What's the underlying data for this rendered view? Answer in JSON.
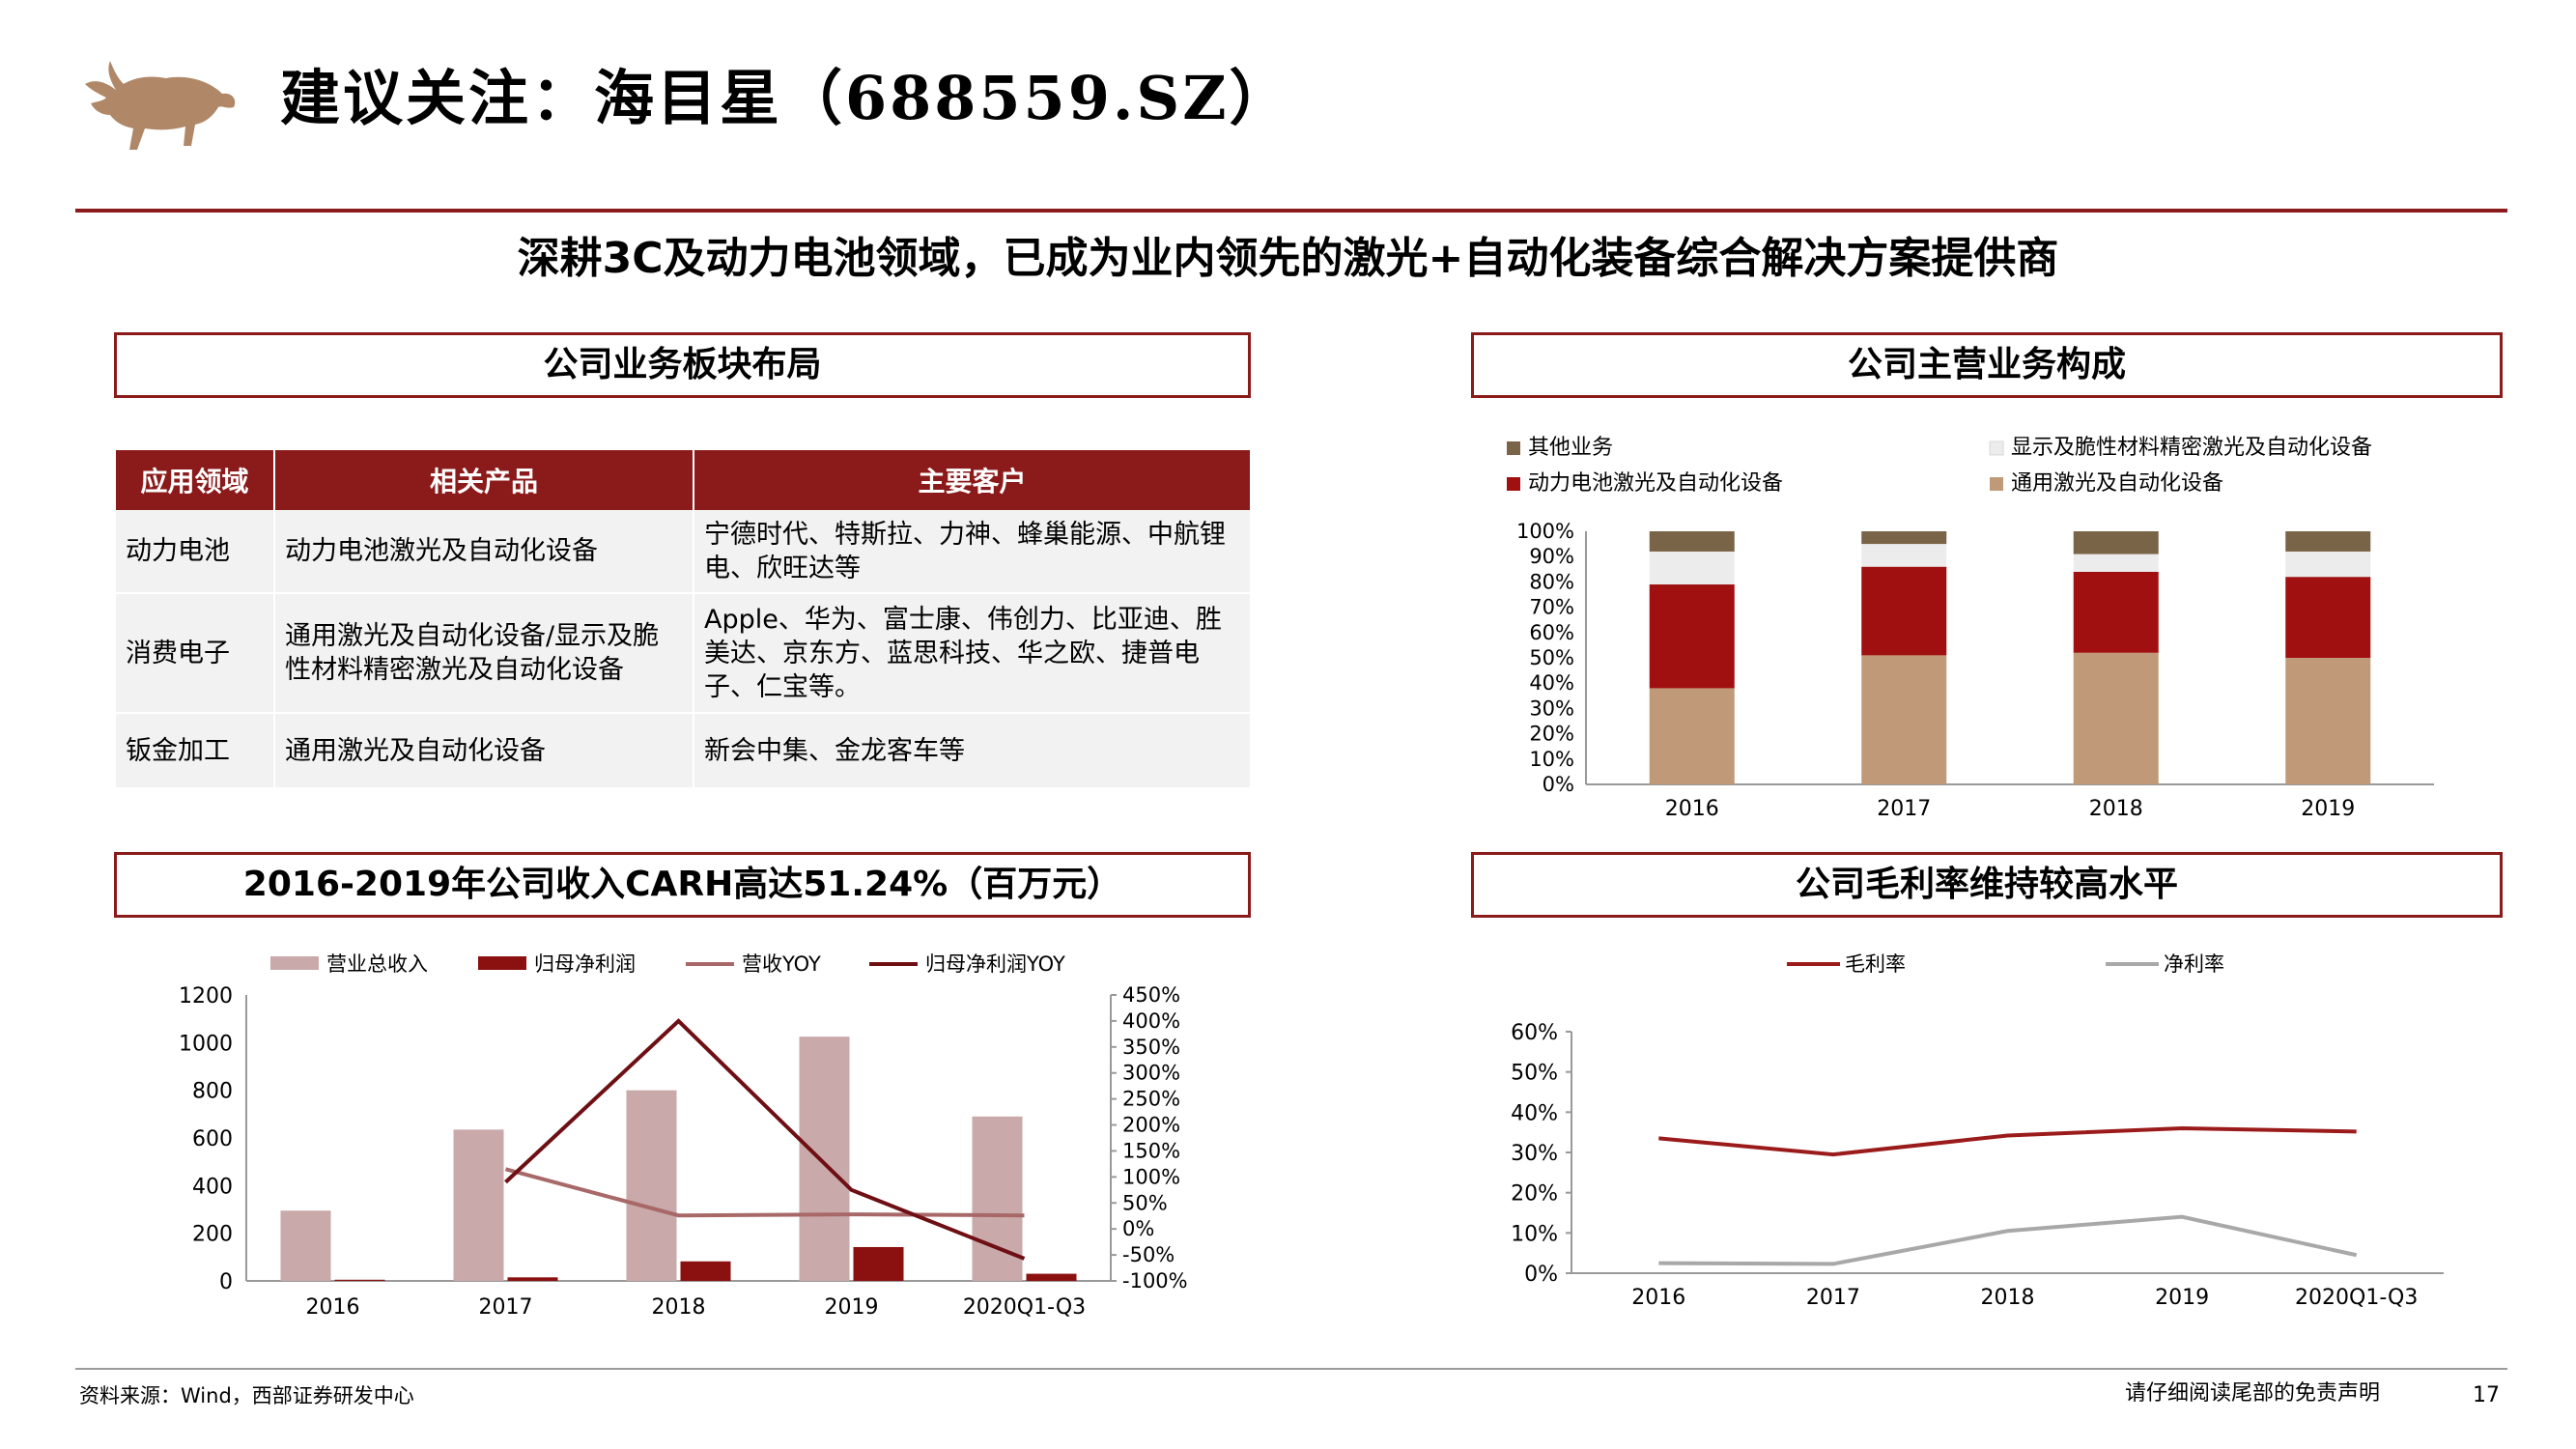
{
  "header": {
    "title": "建议关注：海目星（688559.SZ）",
    "subtitle": "深耕3C及动力电池领域，已成为业内领先的激光+自动化装备综合解决方案提供商",
    "logo_icon": "bull-logo-icon",
    "accent_color": "#8b1a1a"
  },
  "sections": {
    "layout_title": "公司业务板块布局",
    "composition_title": "公司主营业务构成",
    "revenue_title": "2016-2019年公司收入CARH高达51.24%（百万元）",
    "margin_title": "公司毛利率维持较高水平"
  },
  "business_table": {
    "headers": [
      "应用领域",
      "相关产品",
      "主要客户"
    ],
    "rows": [
      [
        "动力电池",
        "动力电池激光及自动化设备",
        "宁德时代、特斯拉、力神、蜂巢能源、中航锂电、欣旺达等"
      ],
      [
        "消费电子",
        "通用激光及自动化设备/显示及脆性材料精密激光及自动化设备",
        "Apple、华为、富士康、伟创力、比亚迪、胜美达、京东方、蓝思科技、华之欧、捷普电子、仁宝等。"
      ],
      [
        "钣金加工",
        "通用激光及自动化设备",
        "新会中集、金龙客车等"
      ]
    ]
  },
  "chart_data": [
    {
      "type": "bar",
      "stacked": true,
      "categories": [
        "2016",
        "2017",
        "2018",
        "2019"
      ],
      "series": [
        {
          "name": "通用激光及自动化设备",
          "color": "#c09a78",
          "values": [
            38,
            51,
            52,
            50
          ]
        },
        {
          "name": "动力电池激光及自动化设备",
          "color": "#a01010",
          "values": [
            41,
            35,
            32,
            32
          ]
        },
        {
          "name": "显示及脆性材料精密激光及自动化设备",
          "color": "#ececec",
          "values": [
            13,
            9,
            7,
            10
          ]
        },
        {
          "name": "其他业务",
          "color": "#7a6448",
          "values": [
            8,
            5,
            9,
            8
          ]
        }
      ],
      "yticks": [
        "0%",
        "10%",
        "20%",
        "30%",
        "40%",
        "50%",
        "60%",
        "70%",
        "80%",
        "90%",
        "100%"
      ],
      "ylim": [
        0,
        100
      ],
      "legend_placement": "top"
    },
    {
      "type": "bar",
      "categories": [
        "2016",
        "2017",
        "2018",
        "2019",
        "2020Q1-Q3"
      ],
      "series": [
        {
          "name": "营业总收入",
          "kind": "bar",
          "axis": "left",
          "color": "#c9a9aa",
          "values": [
            295,
            635,
            800,
            1025,
            690
          ]
        },
        {
          "name": "归母净利润",
          "kind": "bar",
          "axis": "left",
          "color": "#8b1010",
          "values": [
            5,
            15,
            82,
            142,
            30
          ]
        },
        {
          "name": "营收YOY",
          "kind": "line",
          "axis": "right",
          "color": "#a86868",
          "values": [
            null,
            115,
            26,
            28,
            26
          ]
        },
        {
          "name": "归母净利润YOY",
          "kind": "line",
          "axis": "right",
          "color": "#6e0f14",
          "values": [
            null,
            90,
            400,
            75,
            -57
          ]
        }
      ],
      "yticks_left": [
        "0",
        "200",
        "400",
        "600",
        "800",
        "1000",
        "1200"
      ],
      "ylim_left": [
        0,
        1200
      ],
      "yticks_right": [
        "-100%",
        "-50%",
        "0%",
        "50%",
        "100%",
        "150%",
        "200%",
        "250%",
        "300%",
        "350%",
        "400%",
        "450%"
      ],
      "ylim_right": [
        -100,
        450
      ],
      "legend_placement": "top"
    },
    {
      "type": "line",
      "categories": [
        "2016",
        "2017",
        "2018",
        "2019",
        "2020Q1-Q3"
      ],
      "series": [
        {
          "name": "毛利率",
          "color": "#9b1b1b",
          "values": [
            33.5,
            29.5,
            34.2,
            36.0,
            35.2
          ]
        },
        {
          "name": "净利率",
          "color": "#a8a8a8",
          "values": [
            2.5,
            2.3,
            10.5,
            14.0,
            4.5
          ]
        }
      ],
      "yticks": [
        "0%",
        "10%",
        "20%",
        "30%",
        "40%",
        "50%",
        "60%"
      ],
      "ylim": [
        0,
        60
      ],
      "legend_placement": "top"
    }
  ],
  "footer": {
    "source": "资料来源：Wind，西部证券研发中心",
    "disclaimer": "请仔细阅读尾部的免责声明",
    "page_number": "17"
  }
}
